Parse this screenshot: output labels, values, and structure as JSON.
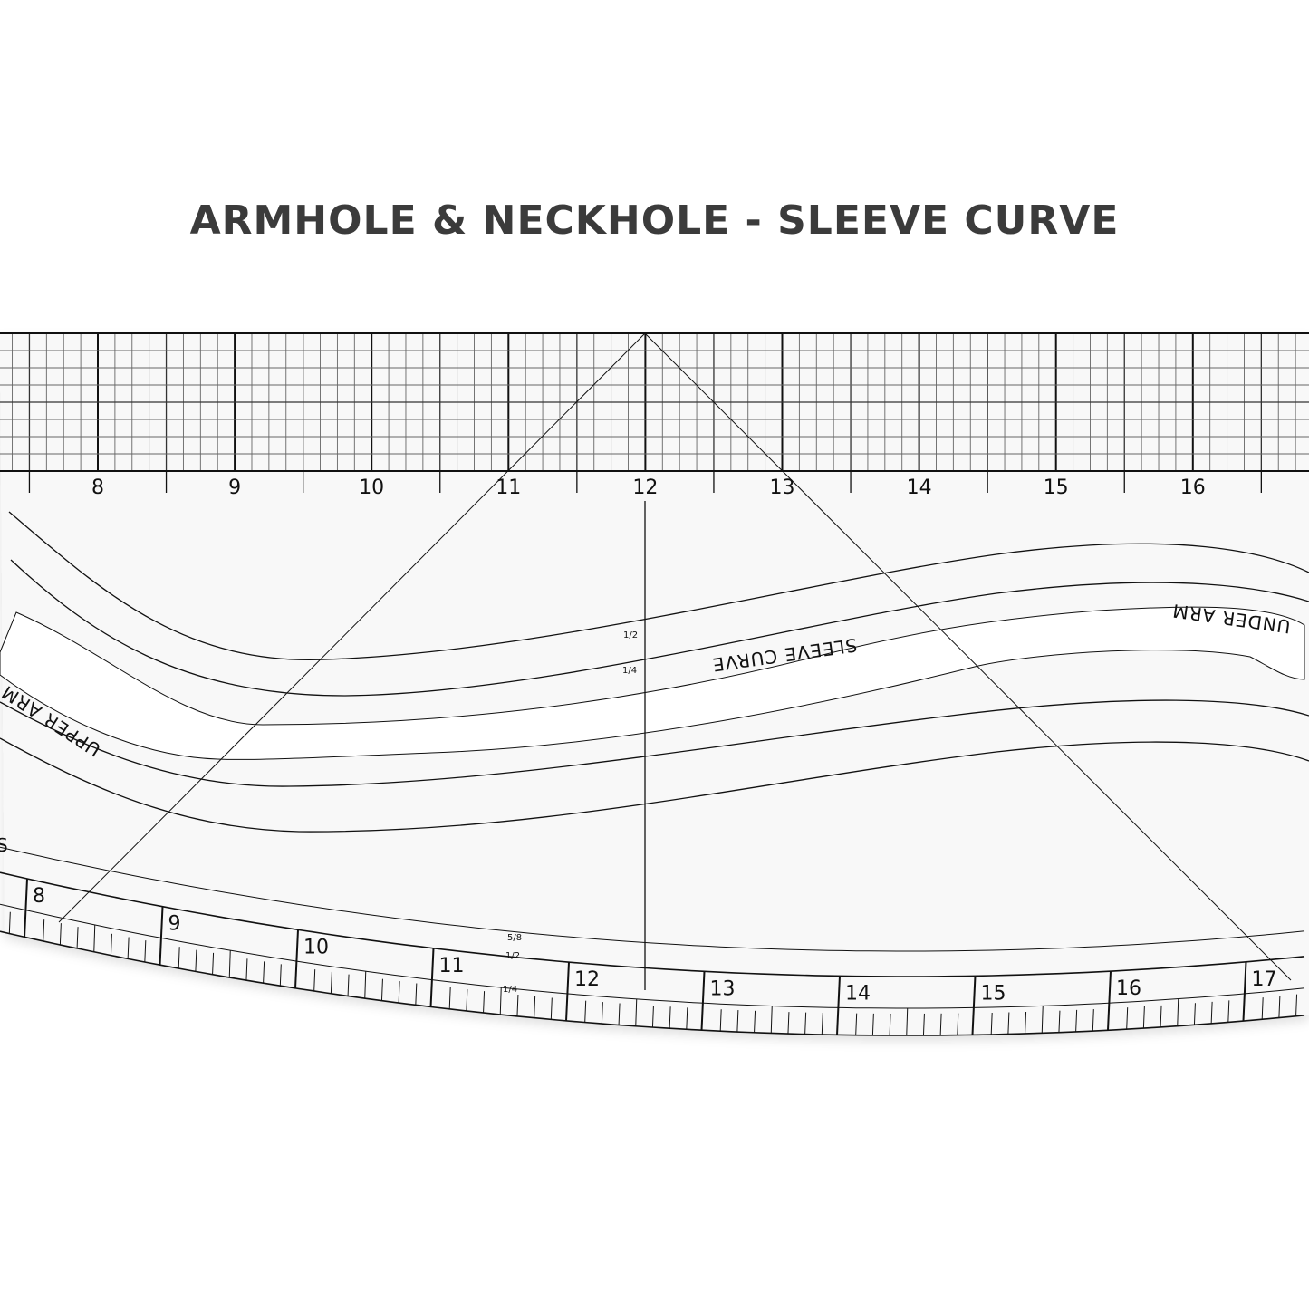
{
  "title": "ARMHOLE & NECKHOLE - SLEEVE CURVE",
  "top_scale": {
    "labels": [
      "8",
      "9",
      "10",
      "11",
      "12",
      "13",
      "14",
      "15",
      "16"
    ]
  },
  "bottom_scale": {
    "labels": [
      "8",
      "9",
      "10",
      "11",
      "12",
      "13",
      "14",
      "15",
      "16",
      "17"
    ],
    "fractions": [
      "5/8",
      "1/2",
      "1/4"
    ]
  },
  "curve": {
    "label": "SLEEVE CURVE",
    "under_arm": "UNDER ARM",
    "upper_arm": "UPPER ARM",
    "partial_s": "S",
    "fractions": [
      "1/2",
      "1/4"
    ]
  },
  "colors": {
    "title": "#3b3b3b",
    "ruler_body": "#f8f8f8",
    "lines": "#111111"
  }
}
